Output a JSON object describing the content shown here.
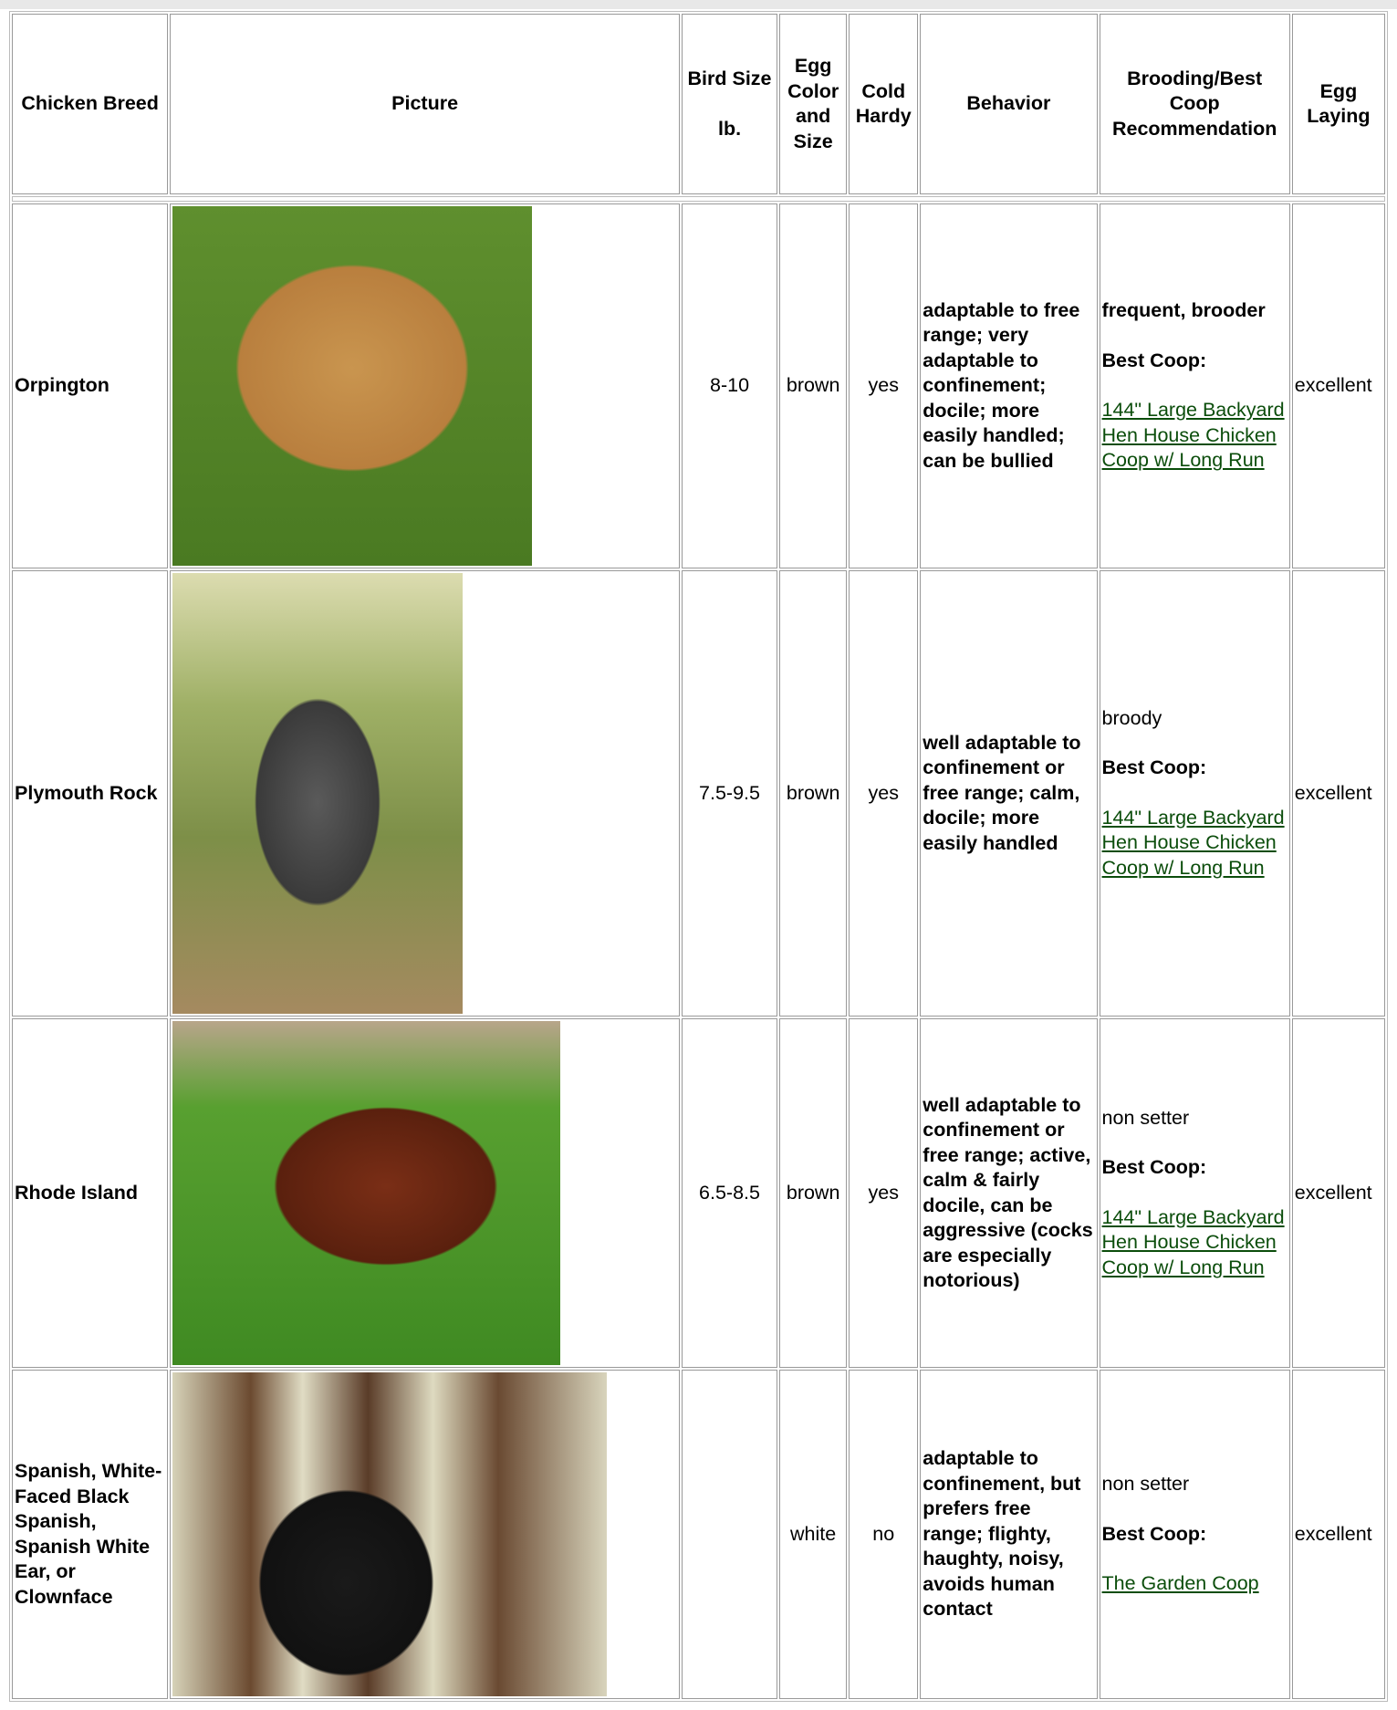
{
  "table": {
    "headers": [
      "Chicken Breed",
      "Picture",
      "Bird Size\n\nlb.",
      "Egg Color and Size",
      "Cold Hardy",
      "Behavior",
      "Brooding/Best Coop Recommendation",
      "Egg Laying"
    ],
    "rows": [
      {
        "breed": "Orpington",
        "size": "8-10",
        "egg": "brown",
        "cold": "yes",
        "behavior": "adaptable to free range; very adaptable to confinement; docile; more easily handled; can be bullied",
        "brooding": "frequent, brooder",
        "brooding_bold": true,
        "coop_label": "Best Coop:",
        "coop_link": "144\" Large Backyard Hen House Chicken Coop w/ Long Run",
        "laying": "excellent"
      },
      {
        "breed": "Plymouth Rock",
        "size": "7.5-9.5",
        "egg": "brown",
        "cold": "yes",
        "behavior": "well adaptable to confinement or free range; calm, docile; more easily handled",
        "brooding": "broody",
        "brooding_bold": false,
        "coop_label": "Best Coop:",
        "coop_link": "144\" Large Backyard Hen House Chicken Coop w/ Long Run",
        "laying": "excellent"
      },
      {
        "breed": "Rhode Island",
        "size": "6.5-8.5",
        "egg": "brown",
        "cold": "yes",
        "behavior": "well adaptable to confinement or free range; active, calm & fairly docile, can be aggressive (cocks are especially notorious)",
        "brooding": "non setter",
        "brooding_bold": false,
        "coop_label": "Best Coop:",
        "coop_link": "144\" Large Backyard Hen House Chicken Coop w/ Long Run",
        "laying": "excellent"
      },
      {
        "breed": "Spanish, White-Faced Black Spanish, Spanish White Ear, or Clownface",
        "size": null,
        "egg": "white",
        "cold": "no",
        "behavior": "adaptable to confinement, but prefers free range; flighty, haughty, noisy, avoids human contact",
        "brooding": "non setter",
        "brooding_bold": false,
        "coop_label": "Best Coop:",
        "coop_link": "The Garden Coop",
        "laying": "excellent"
      }
    ]
  }
}
